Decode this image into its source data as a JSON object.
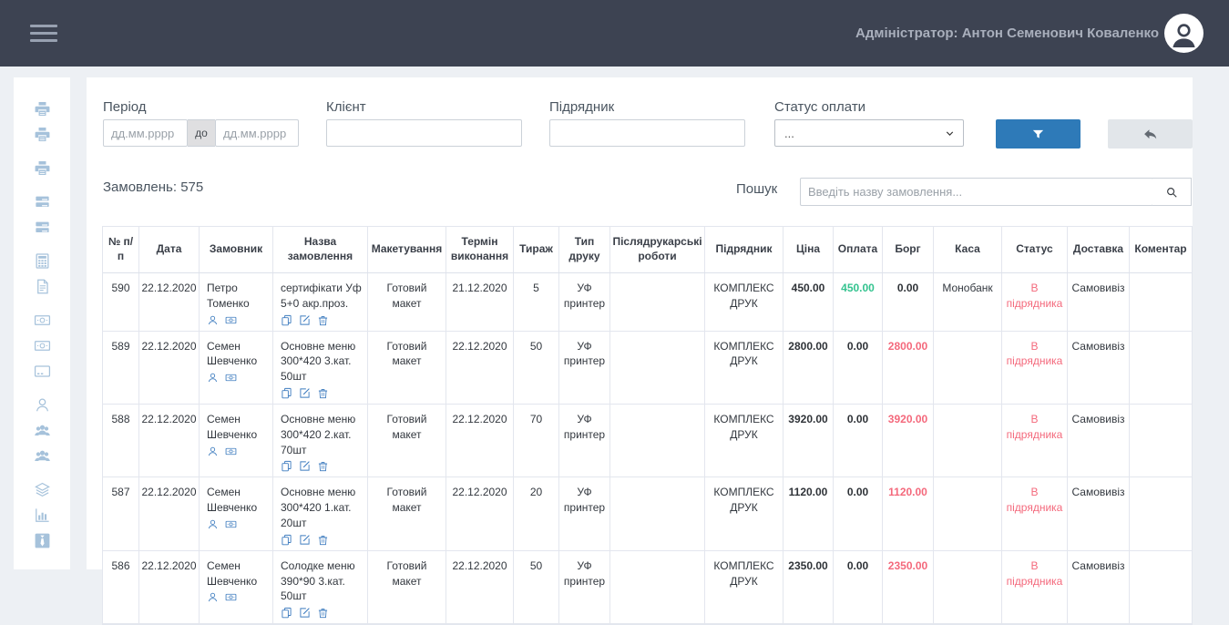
{
  "topbar": {
    "admin_label": "Адміністратор: Антон Семенович Коваленко"
  },
  "sidebar": {
    "icons": [
      "printer",
      "printer",
      "printer",
      "list",
      "list",
      "calculator",
      "document",
      "banknote",
      "banknote",
      "credit-card",
      "user",
      "users",
      "users",
      "layers",
      "bar-chart",
      "tie"
    ]
  },
  "filters": {
    "period_label": "Період",
    "date_placeholder": "дд.мм.рррр",
    "date_separator": "до",
    "date_from_value": "",
    "date_to_value": "",
    "client_label": "Клієнт",
    "client_value": "",
    "contractor_label": "Підрядник",
    "contractor_value": "",
    "payment_status_label": "Статус оплати",
    "payment_status_value": "..."
  },
  "orders": {
    "count_label": "Замовлень: 575",
    "search_label": "Пошук",
    "search_placeholder": "Введіть назву замовлення...",
    "search_value": ""
  },
  "colors": {
    "green": "#34c38f",
    "red": "#f4697c",
    "dark": "#2f3338",
    "accent_blue": "#2e7ab8",
    "topbar_bg": "#3d4352",
    "icon_blue": "#3e7cbf"
  },
  "table": {
    "columns": [
      "№ п/п",
      "Дата",
      "Замовник",
      "Назва замовлення",
      "Макетування",
      "Термін виконання",
      "Тираж",
      "Тип друку",
      "Післядрукарські роботи",
      "Підрядник",
      "Ціна",
      "Оплата",
      "Борг",
      "Каса",
      "Статус",
      "Доставка",
      "Коментар"
    ],
    "rows": [
      {
        "num": "590",
        "date": "22.12.2020",
        "customer": "Петро Томенко",
        "title": "сертифікати Уф 5+0 акр.проз.",
        "layout": "Готовий макет",
        "deadline": "21.12.2020",
        "qty": "5",
        "print_type": "УФ принтер",
        "postpress": "",
        "contractor": "КОМПЛЕКС ДРУК",
        "price": "450.00",
        "payment": "450.00",
        "payment_color": "green",
        "debt": "0.00",
        "debt_color": "dark",
        "cash": "Монобанк",
        "status": "В підрядника",
        "status_color": "red",
        "delivery": "Самовивіз",
        "comment": ""
      },
      {
        "num": "589",
        "date": "22.12.2020",
        "customer": "Семен Шевченко",
        "title": "Основне меню 300*420 3.кат. 50шт",
        "layout": "Готовий макет",
        "deadline": "22.12.2020",
        "qty": "50",
        "print_type": "УФ принтер",
        "postpress": "",
        "contractor": "КОМПЛЕКС ДРУК",
        "price": "2800.00",
        "payment": "0.00",
        "payment_color": "dark",
        "debt": "2800.00",
        "debt_color": "red",
        "cash": "",
        "status": "В підрядника",
        "status_color": "red",
        "delivery": "Самовивіз",
        "comment": ""
      },
      {
        "num": "588",
        "date": "22.12.2020",
        "customer": "Семен Шевченко",
        "title": "Основне меню 300*420 2.кат. 70шт",
        "layout": "Готовий макет",
        "deadline": "22.12.2020",
        "qty": "70",
        "print_type": "УФ принтер",
        "postpress": "",
        "contractor": "КОМПЛЕКС ДРУК",
        "price": "3920.00",
        "payment": "0.00",
        "payment_color": "dark",
        "debt": "3920.00",
        "debt_color": "red",
        "cash": "",
        "status": "В підрядника",
        "status_color": "red",
        "delivery": "Самовивіз",
        "comment": ""
      },
      {
        "num": "587",
        "date": "22.12.2020",
        "customer": "Семен Шевченко",
        "title": "Основне меню 300*420 1.кат. 20шт",
        "layout": "Готовий макет",
        "deadline": "22.12.2020",
        "qty": "20",
        "print_type": "УФ принтер",
        "postpress": "",
        "contractor": "КОМПЛЕКС ДРУК",
        "price": "1120.00",
        "payment": "0.00",
        "payment_color": "dark",
        "debt": "1120.00",
        "debt_color": "red",
        "cash": "",
        "status": "В підрядника",
        "status_color": "red",
        "delivery": "Самовивіз",
        "comment": ""
      },
      {
        "num": "586",
        "date": "22.12.2020",
        "customer": "Семен Шевченко",
        "title": "Солодке меню 390*90 3.кат. 50шт",
        "layout": "Готовий макет",
        "deadline": "22.12.2020",
        "qty": "50",
        "print_type": "УФ принтер",
        "postpress": "",
        "contractor": "КОМПЛЕКС ДРУК",
        "price": "2350.00",
        "payment": "0.00",
        "payment_color": "dark",
        "debt": "2350.00",
        "debt_color": "red",
        "cash": "",
        "status": "В підрядника",
        "status_color": "red",
        "delivery": "Самовивіз",
        "comment": ""
      }
    ]
  }
}
